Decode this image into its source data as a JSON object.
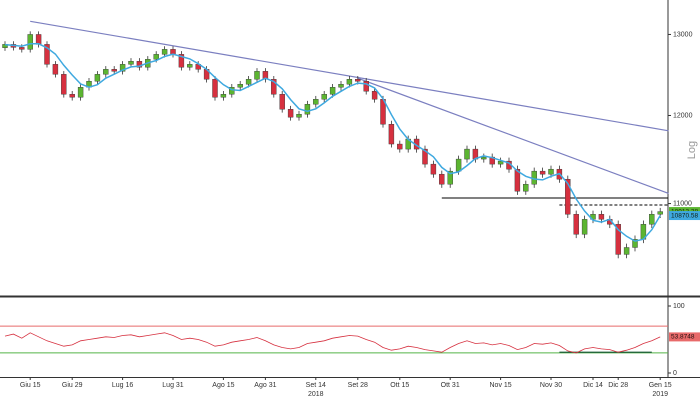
{
  "chart_data": {
    "type": "candlestick",
    "log_scale": true,
    "y_axis_label": "Log",
    "ylim": [
      10050,
      13450
    ],
    "yticks": [
      13000,
      12000,
      11000
    ],
    "up_color": "#5cb531",
    "down_color": "#d6303f",
    "ma_color": "#3fa9e0",
    "categories": [
      null,
      null,
      null,
      "Giu 15",
      null,
      null,
      null,
      null,
      "Giu 29",
      null,
      null,
      null,
      null,
      null,
      "Lug 16",
      null,
      null,
      null,
      null,
      null,
      "Lug 31",
      null,
      null,
      null,
      null,
      null,
      "Ago 15",
      null,
      null,
      null,
      null,
      "Ago 31",
      null,
      null,
      null,
      null,
      null,
      "Set 14",
      null,
      null,
      null,
      null,
      "Set 28",
      null,
      null,
      null,
      null,
      "Ott 15",
      null,
      null,
      null,
      null,
      null,
      "Ott 31",
      null,
      null,
      null,
      null,
      null,
      "Nov 15",
      null,
      null,
      null,
      null,
      null,
      "Nov 30",
      null,
      null,
      null,
      null,
      "Dic 14",
      null,
      null,
      "Dic 28",
      null,
      null,
      null,
      null,
      "Gen 15"
    ],
    "year_labels": [
      null,
      null,
      null,
      null,
      null,
      null,
      null,
      null,
      null,
      null,
      null,
      null,
      null,
      null,
      null,
      null,
      null,
      null,
      null,
      null,
      null,
      null,
      null,
      null,
      null,
      null,
      null,
      null,
      null,
      null,
      null,
      null,
      null,
      null,
      null,
      null,
      null,
      "2018",
      null,
      null,
      null,
      null,
      null,
      null,
      null,
      null,
      null,
      null,
      null,
      null,
      null,
      null,
      null,
      null,
      null,
      null,
      null,
      null,
      null,
      null,
      null,
      null,
      null,
      null,
      null,
      null,
      null,
      null,
      null,
      null,
      null,
      null,
      null,
      null,
      null,
      null,
      null,
      null,
      "2019"
    ],
    "open": [
      12830,
      12873,
      12835,
      12810,
      13000,
      12873,
      12622,
      12498,
      12254,
      12218,
      12339,
      12413,
      12498,
      12560,
      12535,
      12622,
      12660,
      12585,
      12685,
      12747,
      12810,
      12747,
      12585,
      12622,
      12560,
      12437,
      12218,
      12254,
      12339,
      12376,
      12437,
      12535,
      12437,
      12254,
      12074,
      11979,
      12015,
      12134,
      12194,
      12254,
      12339,
      12376,
      12437,
      12413,
      12291,
      12194,
      11897,
      11666,
      11608,
      11724,
      11608,
      11437,
      11324,
      11212,
      11358,
      11494,
      11608,
      11494,
      11517,
      11437,
      11471,
      11380,
      11135,
      11212,
      11358,
      11324,
      11380,
      11268,
      10884,
      10671,
      10830,
      10884,
      10830,
      10777,
      10461,
      10533,
      10618,
      10777,
      10884
    ],
    "high": [
      12913,
      12913,
      12875,
      13040,
      13040,
      12913,
      12662,
      12538,
      12294,
      12379,
      12453,
      12538,
      12600,
      12600,
      12662,
      12700,
      12700,
      12725,
      12787,
      12850,
      12850,
      12787,
      12662,
      12662,
      12600,
      12477,
      12294,
      12379,
      12416,
      12477,
      12575,
      12575,
      12477,
      12294,
      12114,
      12055,
      12174,
      12234,
      12294,
      12379,
      12416,
      12477,
      12477,
      12453,
      12331,
      12234,
      11937,
      11706,
      11764,
      11764,
      11648,
      11477,
      11364,
      11398,
      11534,
      11648,
      11648,
      11557,
      11557,
      11511,
      11511,
      11420,
      11252,
      11398,
      11398,
      11420,
      11420,
      11308,
      10924,
      10870,
      10924,
      10924,
      10870,
      10817,
      10573,
      10658,
      10817,
      10924,
      10953
    ],
    "low": [
      12790,
      12795,
      12770,
      12770,
      12833,
      12582,
      12458,
      12214,
      12178,
      12178,
      12299,
      12373,
      12458,
      12495,
      12495,
      12582,
      12545,
      12545,
      12645,
      12707,
      12707,
      12545,
      12545,
      12520,
      12397,
      12178,
      12178,
      12214,
      12299,
      12336,
      12397,
      12397,
      12214,
      12034,
      11939,
      11939,
      11975,
      12094,
      12154,
      12214,
      12299,
      12336,
      12373,
      12251,
      12154,
      11857,
      11626,
      11568,
      11568,
      11568,
      11397,
      11284,
      11172,
      11172,
      11318,
      11454,
      11454,
      11454,
      11397,
      11397,
      11340,
      11095,
      11095,
      11172,
      11284,
      11284,
      11228,
      10844,
      10631,
      10631,
      10790,
      10790,
      10737,
      10421,
      10421,
      10493,
      10578,
      10737,
      10844
    ],
    "close": [
      12873,
      12835,
      12810,
      13000,
      12873,
      12622,
      12498,
      12254,
      12218,
      12339,
      12413,
      12498,
      12560,
      12535,
      12622,
      12660,
      12585,
      12685,
      12747,
      12810,
      12747,
      12585,
      12622,
      12560,
      12437,
      12218,
      12254,
      12339,
      12376,
      12437,
      12535,
      12437,
      12254,
      12074,
      11979,
      12015,
      12134,
      12194,
      12254,
      12339,
      12376,
      12437,
      12413,
      12291,
      12194,
      11897,
      11666,
      11608,
      11724,
      11608,
      11437,
      11324,
      11212,
      11358,
      11494,
      11608,
      11494,
      11517,
      11437,
      11471,
      11380,
      11135,
      11212,
      11358,
      11324,
      11380,
      11268,
      10884,
      10671,
      10830,
      10884,
      10830,
      10777,
      10461,
      10533,
      10618,
      10777,
      10884,
      10913.38
    ],
    "ma": [
      12870,
      12860,
      12850,
      12880,
      12880,
      12830,
      12750,
      12610,
      12490,
      12380,
      12340,
      12370,
      12450,
      12500,
      12550,
      12590,
      12600,
      12640,
      12670,
      12720,
      12750,
      12720,
      12690,
      12630,
      12560,
      12460,
      12370,
      12310,
      12300,
      12350,
      12400,
      12450,
      12410,
      12320,
      12190,
      12080,
      12050,
      12080,
      12150,
      12230,
      12290,
      12350,
      12390,
      12380,
      12330,
      12200,
      12010,
      11840,
      11720,
      11650,
      11590,
      11520,
      11400,
      11330,
      11350,
      11420,
      11500,
      11530,
      11510,
      11480,
      11450,
      11360,
      11300,
      11270,
      11260,
      11300,
      11330,
      11220,
      11050,
      10920,
      10820,
      10800,
      10830,
      10720,
      10650,
      10600,
      10620,
      10720,
      10870.58
    ],
    "trendlines": [
      {
        "start": [
          3,
          13170
        ],
        "end": [
          79,
          11820
        ],
        "color": "#7b7fc0"
      },
      {
        "start": [
          42,
          12450
        ],
        "end": [
          79,
          11110
        ],
        "color": "#7b7fc0"
      }
    ],
    "levels": [
      {
        "value": 11060,
        "from": 52,
        "to": 79,
        "color": "#000000",
        "dashed": false
      },
      {
        "value": 10985,
        "from": 66,
        "to": 79,
        "color": "#000000",
        "dashed": true
      }
    ],
    "indicator": {
      "ylim": [
        0,
        100
      ],
      "yticks": [
        0,
        100
      ],
      "color": "#d6303f",
      "levels": [
        {
          "value": 70,
          "color": "#e86a6a"
        },
        {
          "value": 30,
          "color": "#55b548"
        }
      ],
      "values": [
        55,
        58,
        52,
        60,
        54,
        48,
        44,
        40,
        42,
        48,
        50,
        52,
        54,
        53,
        56,
        57,
        54,
        56,
        58,
        60,
        56,
        50,
        52,
        50,
        46,
        40,
        42,
        46,
        48,
        50,
        53,
        48,
        42,
        38,
        36,
        38,
        44,
        46,
        48,
        52,
        54,
        56,
        55,
        50,
        46,
        38,
        34,
        36,
        40,
        38,
        35,
        33,
        31,
        38,
        44,
        48,
        44,
        45,
        42,
        44,
        41,
        35,
        38,
        44,
        43,
        45,
        41,
        33,
        30,
        36,
        38,
        36,
        35,
        31,
        34,
        38,
        44,
        48,
        53.8748
      ],
      "base_segment": {
        "value": 31,
        "from": 66,
        "to": 77,
        "color": "#1f5f3a"
      }
    }
  }
}
